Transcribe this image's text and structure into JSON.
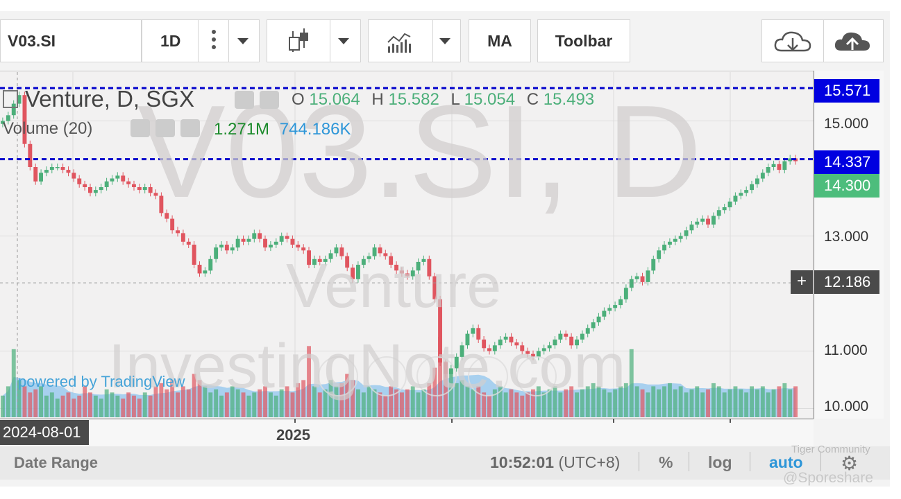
{
  "toolbar": {
    "symbol": "V03.SI",
    "interval": "1D",
    "ma_label": "MA",
    "toolbar_label": "Toolbar"
  },
  "legend": {
    "title": "Venture, D, SGX",
    "o_label": "O",
    "o_value": "15.064",
    "h_label": "H",
    "h_value": "15.582",
    "l_label": "L",
    "l_value": "15.054",
    "c_label": "C",
    "c_value": "15.493",
    "volume_label": "Volume (20)",
    "volume_value": "1.271M",
    "volume_ma_value": "744.186K"
  },
  "watermark": {
    "symbol": "V03.SI, D",
    "name": "Venture",
    "site": "InvestingNote.com",
    "powered": "powered by TradingView"
  },
  "tags": {
    "top_line": "15.571",
    "mid_line": "14.337",
    "last_price": "14.300",
    "crosshair": "12.186",
    "crosshair_date": "2024-08-01",
    "plus": "+"
  },
  "bottom": {
    "date_range": "Date Range",
    "time": "10:52:01",
    "tz": "(UTC+8)",
    "percent": "%",
    "log": "log",
    "auto": "auto",
    "credit_1": "Tiger Community",
    "credit_2": "@Sporeshare"
  },
  "colors": {
    "up": "#4caf7a",
    "down": "#e0555f",
    "line_blue": "#0000cc",
    "tag_blue": "#0000e0",
    "tag_green": "#4dbd7c",
    "tag_dark": "#4a4a4a",
    "vol_area": "#8fc4ee"
  },
  "chart_data": {
    "type": "candlestick",
    "ylim": [
      9.85,
      15.85
    ],
    "yticks": [
      "15.000",
      "13.000",
      "11.000",
      "10.000"
    ],
    "x_ticks": [
      "2025"
    ],
    "hlines": [
      15.571,
      14.337
    ],
    "last_price": 14.3,
    "crosshair_price": 12.186,
    "close_series": [
      15.0,
      15.1,
      15.3,
      15.45,
      14.6,
      14.2,
      13.95,
      14.1,
      14.15,
      14.2,
      14.2,
      14.15,
      14.1,
      14.0,
      13.9,
      13.85,
      13.75,
      13.8,
      13.85,
      13.95,
      14.0,
      14.05,
      13.95,
      13.9,
      13.85,
      13.8,
      13.85,
      13.75,
      13.7,
      13.4,
      13.3,
      13.1,
      13.05,
      12.9,
      12.85,
      12.5,
      12.35,
      12.4,
      12.6,
      12.8,
      12.85,
      12.75,
      12.8,
      12.95,
      12.9,
      12.95,
      13.05,
      12.95,
      12.8,
      12.85,
      12.9,
      13.0,
      12.95,
      12.85,
      12.8,
      12.75,
      12.5,
      12.6,
      12.55,
      12.6,
      12.7,
      12.8,
      12.65,
      12.45,
      12.25,
      12.5,
      12.6,
      12.65,
      12.8,
      12.7,
      12.65,
      12.5,
      12.4,
      12.35,
      12.3,
      12.4,
      12.55,
      12.6,
      12.3,
      11.9,
      10.8,
      10.6,
      10.7,
      10.9,
      11.1,
      11.3,
      11.4,
      11.2,
      11.05,
      11.0,
      11.1,
      11.2,
      11.25,
      11.15,
      11.1,
      11.0,
      10.95,
      10.9,
      11.0,
      11.05,
      11.1,
      11.2,
      11.3,
      11.25,
      11.1,
      11.2,
      11.3,
      11.4,
      11.5,
      11.6,
      11.7,
      11.75,
      11.8,
      11.9,
      12.1,
      12.25,
      12.3,
      12.2,
      12.4,
      12.6,
      12.75,
      12.85,
      12.9,
      12.95,
      13.0,
      13.1,
      13.2,
      13.25,
      13.3,
      13.2,
      13.35,
      13.45,
      13.5,
      13.6,
      13.7,
      13.75,
      13.8,
      13.9,
      14.0,
      14.1,
      14.2,
      14.25,
      14.15,
      14.3,
      14.35,
      14.3
    ],
    "volume_series": [
      0.35,
      0.5,
      1.1,
      0.6,
      0.5,
      0.4,
      0.45,
      0.5,
      0.35,
      0.4,
      0.3,
      0.35,
      0.4,
      0.3,
      0.35,
      0.5,
      0.4,
      0.35,
      0.3,
      0.45,
      0.4,
      0.35,
      0.3,
      0.4,
      0.35,
      0.3,
      0.4,
      0.35,
      0.5,
      0.55,
      0.45,
      0.6,
      0.4,
      0.5,
      0.45,
      0.7,
      0.6,
      0.5,
      0.4,
      0.45,
      0.35,
      0.4,
      0.5,
      0.45,
      0.4,
      0.35,
      0.4,
      0.45,
      0.5,
      0.4,
      0.35,
      0.45,
      0.5,
      0.4,
      0.55,
      0.6,
      1.15,
      0.5,
      0.4,
      0.45,
      0.6,
      0.5,
      0.55,
      0.7,
      0.6,
      0.45,
      0.4,
      0.5,
      0.45,
      0.4,
      0.35,
      0.5,
      0.45,
      0.4,
      0.45,
      0.5,
      0.4,
      0.45,
      0.55,
      0.8,
      1.3,
      0.9,
      0.7,
      0.55,
      0.6,
      0.5,
      0.45,
      0.5,
      0.4,
      0.35,
      0.45,
      0.5,
      0.4,
      0.45,
      0.4,
      0.35,
      0.4,
      0.45,
      0.5,
      0.4,
      0.45,
      0.5,
      0.4,
      0.45,
      0.5,
      0.4,
      0.45,
      0.5,
      0.55,
      0.5,
      0.45,
      0.4,
      0.45,
      0.5,
      0.55,
      1.1,
      0.5,
      0.45,
      0.4,
      0.5,
      0.45,
      0.5,
      0.55,
      0.45,
      0.5,
      0.4,
      0.45,
      0.5,
      0.4,
      0.45,
      0.55,
      0.5,
      0.4,
      0.45,
      0.5,
      0.45,
      0.4,
      0.5,
      0.45,
      0.5,
      0.4,
      0.45,
      0.5,
      0.55,
      0.45,
      0.5,
      0.4,
      0.45
    ]
  }
}
